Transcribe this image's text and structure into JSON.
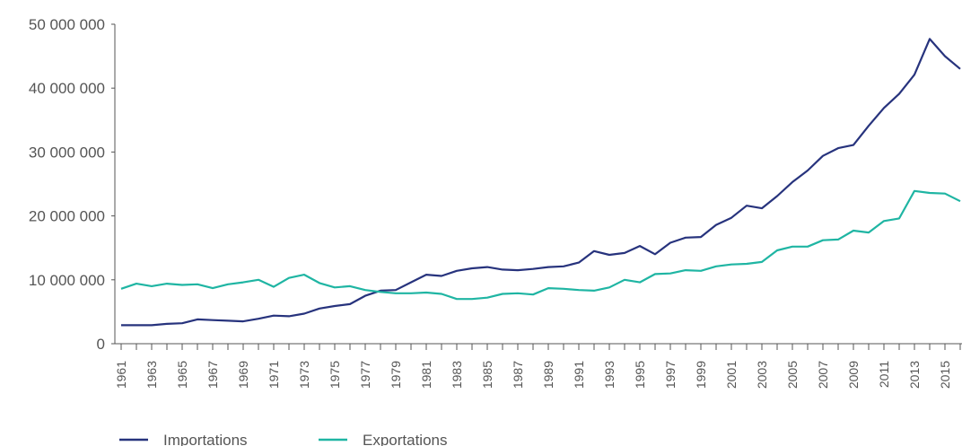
{
  "chart_data": {
    "type": "line",
    "categories": [
      "1961",
      null,
      "1963",
      null,
      "1965",
      null,
      "1967",
      null,
      "1969",
      null,
      "1971",
      null,
      "1973",
      null,
      "1975",
      null,
      "1977",
      null,
      "1979",
      null,
      "1981",
      null,
      "1983",
      null,
      "1985",
      null,
      "1987",
      null,
      "1989",
      null,
      "1991",
      null,
      "1993",
      null,
      "1995",
      null,
      "1997",
      null,
      "1999",
      null,
      "2001",
      null,
      "2003",
      null,
      "2005",
      null,
      "2007",
      null,
      "2009",
      null,
      "2011",
      null,
      "2013",
      null,
      "2015",
      null
    ],
    "series": [
      {
        "name": "Importations",
        "color": "#27337d",
        "values": [
          2900000,
          2900000,
          2900000,
          3100000,
          3200000,
          3800000,
          3700000,
          3600000,
          3500000,
          3900000,
          4400000,
          4300000,
          4700000,
          5500000,
          5900000,
          6200000,
          7500000,
          8300000,
          8400000,
          9600000,
          10800000,
          10600000,
          11400000,
          11800000,
          12000000,
          11600000,
          11500000,
          11700000,
          12000000,
          12100000,
          12700000,
          14500000,
          13900000,
          14200000,
          15300000,
          14000000,
          15800000,
          16600000,
          16700000,
          18600000,
          19700000,
          21600000,
          21200000,
          23100000,
          25300000,
          27100000,
          29400000,
          30600000,
          31100000,
          34100000,
          36900000,
          39100000,
          42100000,
          47700000,
          45000000,
          43000000
        ]
      },
      {
        "name": "Exportations",
        "color": "#1fb5a3",
        "values": [
          8600000,
          9400000,
          9000000,
          9400000,
          9200000,
          9300000,
          8700000,
          9300000,
          9600000,
          10000000,
          8900000,
          10300000,
          10800000,
          9500000,
          8800000,
          9000000,
          8400000,
          8100000,
          7900000,
          7900000,
          8000000,
          7800000,
          7000000,
          7000000,
          7200000,
          7800000,
          7900000,
          7700000,
          8700000,
          8600000,
          8400000,
          8300000,
          8800000,
          10000000,
          9600000,
          10900000,
          11000000,
          11500000,
          11400000,
          12100000,
          12400000,
          12500000,
          12800000,
          14600000,
          15200000,
          15200000,
          16200000,
          16300000,
          17700000,
          17400000,
          19200000,
          19600000,
          23900000,
          23600000,
          23500000,
          22300000
        ]
      }
    ],
    "ylim": [
      0,
      50000000
    ],
    "yticks": [
      0,
      {
        "value": 10000000,
        "label": "10 000 000"
      },
      {
        "value": 20000000,
        "label": "20 000 000"
      },
      {
        "value": 30000000,
        "label": "30 000 000"
      },
      {
        "value": 40000000,
        "label": "40 000 000"
      },
      {
        "value": 50000000,
        "label": "50 000 000"
      }
    ],
    "legend": "bottom"
  }
}
